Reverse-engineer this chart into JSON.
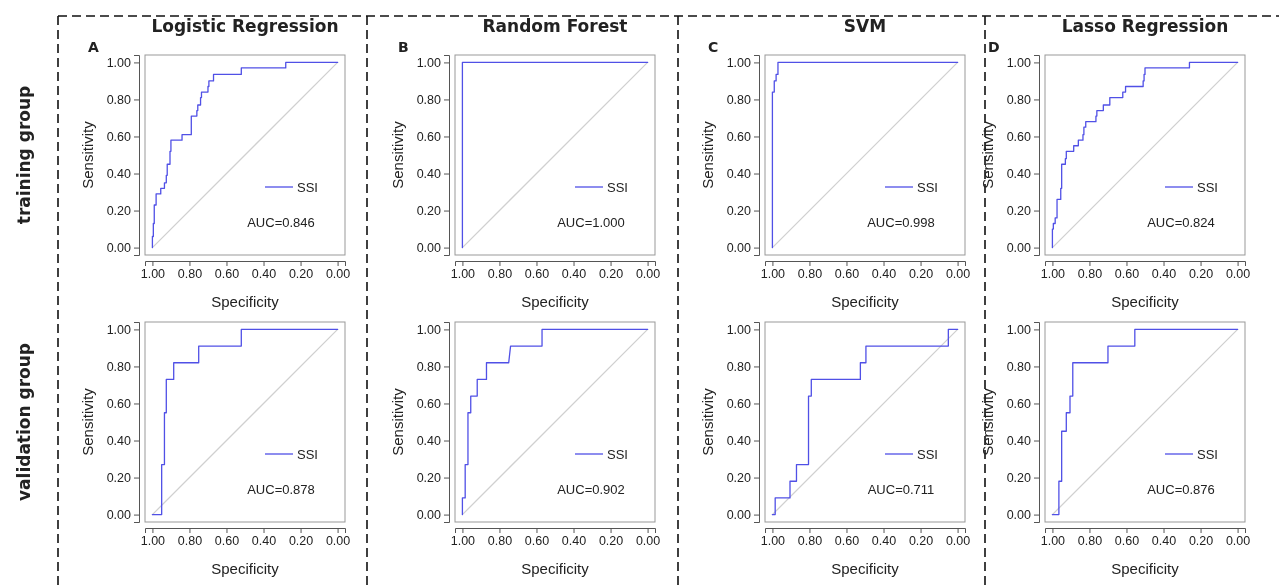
{
  "chart_data": [
    {
      "type": "line",
      "title": "Logistic Regression",
      "xlabel": "Specificity",
      "ylabel": "Sensitivity",
      "annotations": [
        "AUC=0.846",
        "A",
        "training group"
      ],
      "xlim": [
        1.04,
        -0.04
      ],
      "ylim": [
        -0.04,
        1.04
      ],
      "xticks": [
        {
          "value": 1,
          "label": "1.00"
        },
        {
          "value": 0.8,
          "label": "0.80"
        },
        {
          "value": 0.6,
          "label": "0.60"
        },
        {
          "value": 0.4,
          "label": "0.40"
        },
        {
          "value": 0.2,
          "label": "0.20"
        },
        {
          "value": 0,
          "label": "0.00"
        }
      ],
      "yticks": [
        {
          "value": 0,
          "label": "0.00"
        },
        {
          "value": 0.2,
          "label": "0.20"
        },
        {
          "value": 0.4,
          "label": "0.40"
        },
        {
          "value": 0.6,
          "label": "0.60"
        },
        {
          "value": 0.8,
          "label": "0.80"
        },
        {
          "value": 1,
          "label": "1.00"
        }
      ],
      "legend": "right",
      "series": [
        {
          "name": "SSI",
          "color": "#5050e6",
          "x": [
            1,
            1,
            0.995,
            0.995,
            0.99,
            0.99,
            0.98,
            0.98,
            0.955,
            0.955,
            0.935,
            0.935,
            0.925,
            0.925,
            0.92,
            0.92,
            0.905,
            0.905,
            0.9,
            0.9,
            0.84,
            0.84,
            0.79,
            0.79,
            0.76,
            0.76,
            0.755,
            0.755,
            0.74,
            0.74,
            0.735,
            0.735,
            0.7,
            0.7,
            0.695,
            0.695,
            0.67,
            0.67,
            0.52,
            0.52,
            0.28,
            0.28,
            0
          ],
          "values": [
            0,
            0.06,
            0.06,
            0.13,
            0.13,
            0.23,
            0.23,
            0.29,
            0.29,
            0.32,
            0.32,
            0.35,
            0.35,
            0.39,
            0.39,
            0.45,
            0.45,
            0.52,
            0.52,
            0.58,
            0.58,
            0.61,
            0.61,
            0.71,
            0.71,
            0.74,
            0.74,
            0.77,
            0.77,
            0.81,
            0.81,
            0.84,
            0.84,
            0.87,
            0.87,
            0.9,
            0.9,
            0.935,
            0.935,
            0.97,
            0.97,
            1,
            1
          ]
        },
        {
          "color": "#d0d0d0",
          "x": [
            1,
            0
          ],
          "values": [
            0,
            1
          ]
        }
      ]
    },
    {
      "type": "line",
      "title": "Random Forest",
      "xlabel": "Specificity",
      "ylabel": "Sensitivity",
      "annotations": [
        "AUC=1.000",
        "B",
        null
      ],
      "xlim": [
        1.04,
        -0.04
      ],
      "ylim": [
        -0.04,
        1.04
      ],
      "xticks": [
        {
          "value": 1,
          "label": "1.00"
        },
        {
          "value": 0.8,
          "label": "0.80"
        },
        {
          "value": 0.6,
          "label": "0.60"
        },
        {
          "value": 0.4,
          "label": "0.40"
        },
        {
          "value": 0.2,
          "label": "0.20"
        },
        {
          "value": 0,
          "label": "0.00"
        }
      ],
      "yticks": [
        {
          "value": 0,
          "label": "0.00"
        },
        {
          "value": 0.2,
          "label": "0.20"
        },
        {
          "value": 0.4,
          "label": "0.40"
        },
        {
          "value": 0.6,
          "label": "0.60"
        },
        {
          "value": 0.8,
          "label": "0.80"
        },
        {
          "value": 1,
          "label": "1.00"
        }
      ],
      "legend": "right",
      "series": [
        {
          "name": "SSI",
          "color": "#5050e6",
          "x": [
            1,
            1,
            0
          ],
          "values": [
            0,
            1,
            1
          ]
        },
        {
          "color": "#d0d0d0",
          "x": [
            1,
            0
          ],
          "values": [
            0,
            1
          ]
        }
      ]
    },
    {
      "type": "line",
      "title": "SVM",
      "xlabel": "Specificity",
      "ylabel": "Sensitivity",
      "annotations": [
        "AUC=0.998",
        "C",
        null
      ],
      "xlim": [
        1.04,
        -0.04
      ],
      "ylim": [
        -0.04,
        1.04
      ],
      "xticks": [
        {
          "value": 1,
          "label": "1.00"
        },
        {
          "value": 0.8,
          "label": "0.80"
        },
        {
          "value": 0.6,
          "label": "0.60"
        },
        {
          "value": 0.4,
          "label": "0.40"
        },
        {
          "value": 0.2,
          "label": "0.20"
        },
        {
          "value": 0,
          "label": "0.00"
        }
      ],
      "yticks": [
        {
          "value": 0,
          "label": "0.00"
        },
        {
          "value": 0.2,
          "label": "0.20"
        },
        {
          "value": 0.4,
          "label": "0.40"
        },
        {
          "value": 0.6,
          "label": "0.60"
        },
        {
          "value": 0.8,
          "label": "0.80"
        },
        {
          "value": 1,
          "label": "1.00"
        }
      ],
      "legend": "right",
      "series": [
        {
          "name": "SSI",
          "color": "#5050e6",
          "x": [
            1,
            1,
            0.99,
            0.99,
            0.98,
            0.98,
            0.97,
            0.97,
            0
          ],
          "values": [
            0,
            0.84,
            0.84,
            0.9,
            0.9,
            0.935,
            0.935,
            1,
            1
          ]
        },
        {
          "color": "#d0d0d0",
          "x": [
            1,
            0
          ],
          "values": [
            0,
            1
          ]
        }
      ]
    },
    {
      "type": "line",
      "title": "Lasso Regression",
      "xlabel": "Specificity",
      "ylabel": "Sensitivity",
      "annotations": [
        "AUC=0.824",
        "D",
        null
      ],
      "xlim": [
        1.04,
        -0.04
      ],
      "ylim": [
        -0.04,
        1.04
      ],
      "xticks": [
        {
          "value": 1,
          "label": "1.00"
        },
        {
          "value": 0.8,
          "label": "0.80"
        },
        {
          "value": 0.6,
          "label": "0.60"
        },
        {
          "value": 0.4,
          "label": "0.40"
        },
        {
          "value": 0.2,
          "label": "0.20"
        },
        {
          "value": 0,
          "label": "0.00"
        }
      ],
      "yticks": [
        {
          "value": 0,
          "label": "0.00"
        },
        {
          "value": 0.2,
          "label": "0.20"
        },
        {
          "value": 0.4,
          "label": "0.40"
        },
        {
          "value": 0.6,
          "label": "0.60"
        },
        {
          "value": 0.8,
          "label": "0.80"
        },
        {
          "value": 1,
          "label": "1.00"
        }
      ],
      "legend": "right",
      "series": [
        {
          "name": "SSI",
          "color": "#5050e6",
          "x": [
            1,
            1,
            0.995,
            0.995,
            0.985,
            0.985,
            0.975,
            0.975,
            0.955,
            0.955,
            0.95,
            0.95,
            0.93,
            0.93,
            0.925,
            0.925,
            0.885,
            0.885,
            0.86,
            0.86,
            0.835,
            0.835,
            0.83,
            0.83,
            0.82,
            0.82,
            0.765,
            0.765,
            0.76,
            0.76,
            0.725,
            0.725,
            0.69,
            0.69,
            0.62,
            0.62,
            0.605,
            0.605,
            0.51,
            0.51,
            0.505,
            0.505,
            0.5,
            0.5,
            0.26,
            0.26,
            0
          ],
          "values": [
            0,
            0.1,
            0.1,
            0.13,
            0.13,
            0.16,
            0.16,
            0.26,
            0.26,
            0.32,
            0.32,
            0.45,
            0.45,
            0.48,
            0.48,
            0.52,
            0.52,
            0.55,
            0.55,
            0.58,
            0.58,
            0.61,
            0.61,
            0.65,
            0.65,
            0.68,
            0.68,
            0.71,
            0.71,
            0.74,
            0.74,
            0.77,
            0.77,
            0.81,
            0.81,
            0.84,
            0.84,
            0.87,
            0.87,
            0.9,
            0.9,
            0.935,
            0.935,
            0.97,
            0.97,
            1,
            1
          ]
        },
        {
          "color": "#d0d0d0",
          "x": [
            1,
            0
          ],
          "values": [
            0,
            1
          ]
        }
      ]
    },
    {
      "type": "line",
      "xlabel": "Specificity",
      "ylabel": "Sensitivity",
      "annotations": [
        "AUC=0.878",
        null,
        "validation group"
      ],
      "xlim": [
        1.04,
        -0.04
      ],
      "ylim": [
        -0.04,
        1.04
      ],
      "xticks": [
        {
          "value": 1,
          "label": "1.00"
        },
        {
          "value": 0.8,
          "label": "0.80"
        },
        {
          "value": 0.6,
          "label": "0.60"
        },
        {
          "value": 0.4,
          "label": "0.40"
        },
        {
          "value": 0.2,
          "label": "0.20"
        },
        {
          "value": 0,
          "label": "0.00"
        }
      ],
      "yticks": [
        {
          "value": 0,
          "label": "0.00"
        },
        {
          "value": 0.2,
          "label": "0.20"
        },
        {
          "value": 0.4,
          "label": "0.40"
        },
        {
          "value": 0.6,
          "label": "0.60"
        },
        {
          "value": 0.8,
          "label": "0.80"
        },
        {
          "value": 1,
          "label": "1.00"
        }
      ],
      "legend": "right",
      "series": [
        {
          "name": "SSI",
          "color": "#5050e6",
          "x": [
            1,
            0.95,
            0.95,
            0.935,
            0.935,
            0.925,
            0.925,
            0.885,
            0.885,
            0.75,
            0.75,
            0.52,
            0.52,
            0
          ],
          "values": [
            0,
            0,
            0.27,
            0.27,
            0.55,
            0.55,
            0.73,
            0.73,
            0.82,
            0.82,
            0.91,
            0.91,
            1,
            1
          ]
        },
        {
          "color": "#d0d0d0",
          "x": [
            1,
            0
          ],
          "values": [
            0,
            1
          ]
        }
      ]
    },
    {
      "type": "line",
      "xlabel": "Specificity",
      "ylabel": "Sensitivity",
      "annotations": [
        "AUC=0.902"
      ],
      "xlim": [
        1.04,
        -0.04
      ],
      "ylim": [
        -0.04,
        1.04
      ],
      "xticks": [
        {
          "value": 1,
          "label": "1.00"
        },
        {
          "value": 0.8,
          "label": "0.80"
        },
        {
          "value": 0.6,
          "label": "0.60"
        },
        {
          "value": 0.4,
          "label": "0.40"
        },
        {
          "value": 0.2,
          "label": "0.20"
        },
        {
          "value": 0,
          "label": "0.00"
        }
      ],
      "yticks": [
        {
          "value": 0,
          "label": "0.00"
        },
        {
          "value": 0.2,
          "label": "0.20"
        },
        {
          "value": 0.4,
          "label": "0.40"
        },
        {
          "value": 0.6,
          "label": "0.60"
        },
        {
          "value": 0.8,
          "label": "0.80"
        },
        {
          "value": 1,
          "label": "1.00"
        }
      ],
      "legend": "right",
      "series": [
        {
          "name": "SSI",
          "color": "#5050e6",
          "x": [
            1,
            1,
            0.985,
            0.985,
            0.97,
            0.97,
            0.955,
            0.955,
            0.92,
            0.92,
            0.87,
            0.87,
            0.75,
            0.74,
            0.57,
            0.57,
            0
          ],
          "values": [
            0,
            0.09,
            0.09,
            0.27,
            0.27,
            0.55,
            0.55,
            0.64,
            0.64,
            0.73,
            0.73,
            0.82,
            0.82,
            0.91,
            0.91,
            1,
            1
          ]
        },
        {
          "color": "#d0d0d0",
          "x": [
            1,
            0
          ],
          "values": [
            0,
            1
          ]
        }
      ]
    },
    {
      "type": "line",
      "xlabel": "Specificity",
      "ylabel": "Sensitivity",
      "annotations": [
        "AUC=0.711"
      ],
      "xlim": [
        1.04,
        -0.04
      ],
      "ylim": [
        -0.04,
        1.04
      ],
      "xticks": [
        {
          "value": 1,
          "label": "1.00"
        },
        {
          "value": 0.8,
          "label": "0.80"
        },
        {
          "value": 0.6,
          "label": "0.60"
        },
        {
          "value": 0.4,
          "label": "0.40"
        },
        {
          "value": 0.2,
          "label": "0.20"
        },
        {
          "value": 0,
          "label": "0.00"
        }
      ],
      "yticks": [
        {
          "value": 0,
          "label": "0.00"
        },
        {
          "value": 0.2,
          "label": "0.20"
        },
        {
          "value": 0.4,
          "label": "0.40"
        },
        {
          "value": 0.6,
          "label": "0.60"
        },
        {
          "value": 0.8,
          "label": "0.80"
        },
        {
          "value": 1,
          "label": "1.00"
        }
      ],
      "legend": "right",
      "series": [
        {
          "name": "SSI",
          "color": "#5050e6",
          "x": [
            1,
            0.985,
            0.985,
            0.905,
            0.905,
            0.87,
            0.87,
            0.805,
            0.805,
            0.79,
            0.79,
            0.525,
            0.525,
            0.495,
            0.495,
            0.05,
            0.05,
            0
          ],
          "values": [
            0,
            0,
            0.09,
            0.09,
            0.18,
            0.18,
            0.27,
            0.27,
            0.64,
            0.64,
            0.73,
            0.73,
            0.82,
            0.82,
            0.91,
            0.91,
            1,
            1
          ]
        },
        {
          "color": "#d0d0d0",
          "x": [
            1,
            0
          ],
          "values": [
            0,
            1
          ]
        }
      ]
    },
    {
      "type": "line",
      "xlabel": "Specificity",
      "ylabel": "Sensitivity",
      "annotations": [
        "AUC=0.876"
      ],
      "xlim": [
        1.04,
        -0.04
      ],
      "ylim": [
        -0.04,
        1.04
      ],
      "xticks": [
        {
          "value": 1,
          "label": "1.00"
        },
        {
          "value": 0.8,
          "label": "0.80"
        },
        {
          "value": 0.6,
          "label": "0.60"
        },
        {
          "value": 0.4,
          "label": "0.40"
        },
        {
          "value": 0.2,
          "label": "0.20"
        },
        {
          "value": 0,
          "label": "0.00"
        }
      ],
      "yticks": [
        {
          "value": 0,
          "label": "0.00"
        },
        {
          "value": 0.2,
          "label": "0.20"
        },
        {
          "value": 0.4,
          "label": "0.40"
        },
        {
          "value": 0.6,
          "label": "0.60"
        },
        {
          "value": 0.8,
          "label": "0.80"
        },
        {
          "value": 1,
          "label": "1.00"
        }
      ],
      "legend": "right",
      "series": [
        {
          "name": "SSI",
          "color": "#5050e6",
          "x": [
            1,
            0.965,
            0.965,
            0.95,
            0.95,
            0.925,
            0.925,
            0.905,
            0.905,
            0.89,
            0.89,
            0.7,
            0.7,
            0.555,
            0.555,
            0
          ],
          "values": [
            0,
            0,
            0.18,
            0.18,
            0.45,
            0.45,
            0.55,
            0.55,
            0.64,
            0.64,
            0.82,
            0.82,
            0.91,
            0.91,
            1,
            1
          ]
        },
        {
          "color": "#d0d0d0",
          "x": [
            1,
            0
          ],
          "values": [
            0,
            1
          ]
        }
      ]
    }
  ]
}
